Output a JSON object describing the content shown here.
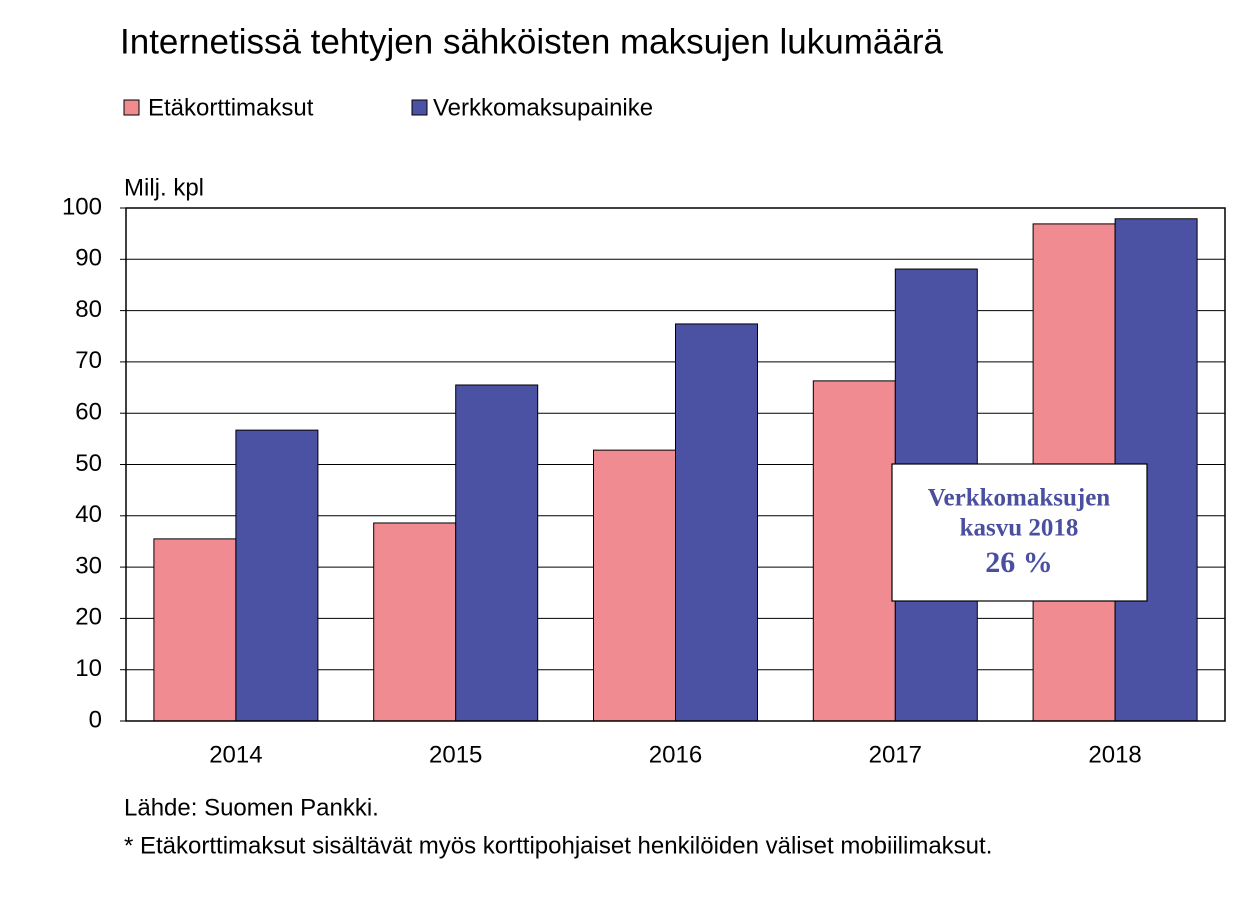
{
  "chart_data": {
    "type": "bar",
    "title": "Internetissä tehtyjen sähköisten maksujen lukumäärä",
    "y_label": "Milj. kpl",
    "categories": [
      "2014",
      "2015",
      "2016",
      "2017",
      "2018"
    ],
    "series": [
      {
        "name": "Etäkorttimaksut",
        "color": "#f08c91",
        "values": [
          35.5,
          38.6,
          52.8,
          66.3,
          96.9
        ]
      },
      {
        "name": "Verkkomaksupainike",
        "color": "#4b52a3",
        "values": [
          56.7,
          65.5,
          77.4,
          88.1,
          97.9
        ]
      }
    ],
    "ylim": [
      0,
      100
    ],
    "yticks": [
      0,
      10,
      20,
      30,
      40,
      50,
      60,
      70,
      80,
      90,
      100
    ],
    "grid": true,
    "annotation": [
      "Verkkomaksujen",
      "kasvu 2018",
      "26 %"
    ],
    "footnotes": [
      "Lähde: Suomen Pankki.",
      "* Etäkorttimaksut sisältävät myös korttipohjaiset henkilöiden väliset mobiilimaksut."
    ]
  }
}
